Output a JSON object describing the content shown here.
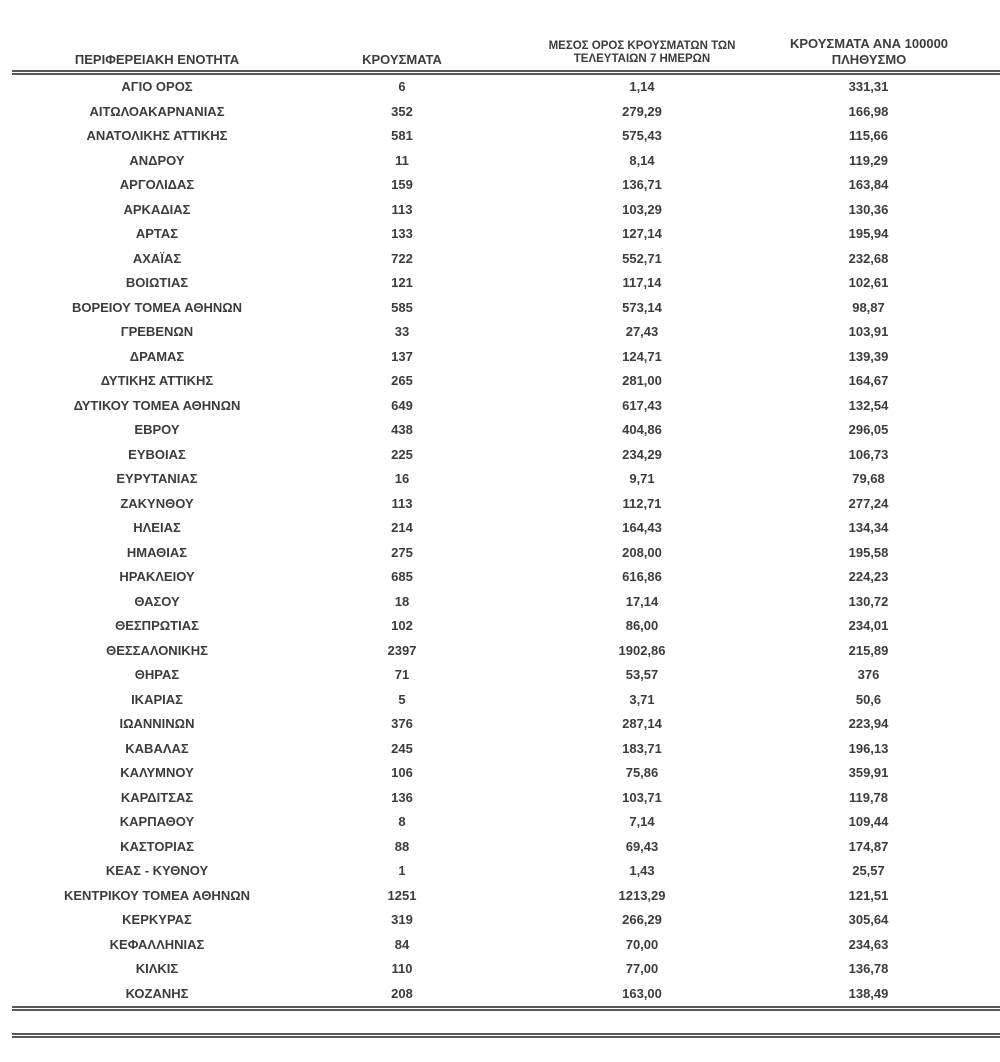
{
  "colors": {
    "text": "#3c3c3c",
    "rule": "#585858",
    "background": "#ffffff"
  },
  "table": {
    "columns": [
      "ΠΕΡΙΦΕΡΕΙΑΚΗ ΕΝΟΤΗΤΑ",
      "ΚΡΟΥΣΜΑΤΑ",
      "ΜΕΣΟΣ ΟΡΟΣ ΚΡΟΥΣΜΑΤΩΝ ΤΩΝ ΤΕΛΕΥΤΑΙΩΝ 7 ΗΜΕΡΩΝ",
      "ΚΡΟΥΣΜΑΤΑ ΑΝΑ 100000 ΠΛΗΘΥΣΜΟ"
    ],
    "rows": [
      [
        "ΑΓΙΟ ΟΡΟΣ",
        "6",
        "1,14",
        "331,31"
      ],
      [
        "ΑΙΤΩΛΟΑΚΑΡΝΑΝΙΑΣ",
        "352",
        "279,29",
        "166,98"
      ],
      [
        "ΑΝΑΤΟΛΙΚΗΣ ΑΤΤΙΚΗΣ",
        "581",
        "575,43",
        "115,66"
      ],
      [
        "ΑΝΔΡΟΥ",
        "11",
        "8,14",
        "119,29"
      ],
      [
        "ΑΡΓΟΛΙΔΑΣ",
        "159",
        "136,71",
        "163,84"
      ],
      [
        "ΑΡΚΑΔΙΑΣ",
        "113",
        "103,29",
        "130,36"
      ],
      [
        "ΑΡΤΑΣ",
        "133",
        "127,14",
        "195,94"
      ],
      [
        "ΑΧΑΪΑΣ",
        "722",
        "552,71",
        "232,68"
      ],
      [
        "ΒΟΙΩΤΙΑΣ",
        "121",
        "117,14",
        "102,61"
      ],
      [
        "ΒΟΡΕΙΟΥ ΤΟΜΕΑ ΑΘΗΝΩΝ",
        "585",
        "573,14",
        "98,87"
      ],
      [
        "ΓΡΕΒΕΝΩΝ",
        "33",
        "27,43",
        "103,91"
      ],
      [
        "ΔΡΑΜΑΣ",
        "137",
        "124,71",
        "139,39"
      ],
      [
        "ΔΥΤΙΚΗΣ ΑΤΤΙΚΗΣ",
        "265",
        "281,00",
        "164,67"
      ],
      [
        "ΔΥΤΙΚΟΥ ΤΟΜΕΑ ΑΘΗΝΩΝ",
        "649",
        "617,43",
        "132,54"
      ],
      [
        "ΕΒΡΟΥ",
        "438",
        "404,86",
        "296,05"
      ],
      [
        "ΕΥΒΟΙΑΣ",
        "225",
        "234,29",
        "106,73"
      ],
      [
        "ΕΥΡΥΤΑΝΙΑΣ",
        "16",
        "9,71",
        "79,68"
      ],
      [
        "ΖΑΚΥΝΘΟΥ",
        "113",
        "112,71",
        "277,24"
      ],
      [
        "ΗΛΕΙΑΣ",
        "214",
        "164,43",
        "134,34"
      ],
      [
        "ΗΜΑΘΙΑΣ",
        "275",
        "208,00",
        "195,58"
      ],
      [
        "ΗΡΑΚΛΕΙΟΥ",
        "685",
        "616,86",
        "224,23"
      ],
      [
        "ΘΑΣΟΥ",
        "18",
        "17,14",
        "130,72"
      ],
      [
        "ΘΕΣΠΡΩΤΙΑΣ",
        "102",
        "86,00",
        "234,01"
      ],
      [
        "ΘΕΣΣΑΛΟΝΙΚΗΣ",
        "2397",
        "1902,86",
        "215,89"
      ],
      [
        "ΘΗΡΑΣ",
        "71",
        "53,57",
        "376"
      ],
      [
        "ΙΚΑΡΙΑΣ",
        "5",
        "3,71",
        "50,6"
      ],
      [
        "ΙΩΑΝΝΙΝΩΝ",
        "376",
        "287,14",
        "223,94"
      ],
      [
        "ΚΑΒΑΛΑΣ",
        "245",
        "183,71",
        "196,13"
      ],
      [
        "ΚΑΛΥΜΝΟΥ",
        "106",
        "75,86",
        "359,91"
      ],
      [
        "ΚΑΡΔΙΤΣΑΣ",
        "136",
        "103,71",
        "119,78"
      ],
      [
        "ΚΑΡΠΑΘΟΥ",
        "8",
        "7,14",
        "109,44"
      ],
      [
        "ΚΑΣΤΟΡΙΑΣ",
        "88",
        "69,43",
        "174,87"
      ],
      [
        "ΚΕΑΣ - ΚΥΘΝΟΥ",
        "1",
        "1,43",
        "25,57"
      ],
      [
        "ΚΕΝΤΡΙΚΟΥ ΤΟΜΕΑ ΑΘΗΝΩΝ",
        "1251",
        "1213,29",
        "121,51"
      ],
      [
        "ΚΕΡΚΥΡΑΣ",
        "319",
        "266,29",
        "305,64"
      ],
      [
        "ΚΕΦΑΛΛΗΝΙΑΣ",
        "84",
        "70,00",
        "234,63"
      ],
      [
        "ΚΙΛΚΙΣ",
        "110",
        "77,00",
        "136,78"
      ],
      [
        "ΚΟΖΑΝΗΣ",
        "208",
        "163,00",
        "138,49"
      ]
    ]
  }
}
